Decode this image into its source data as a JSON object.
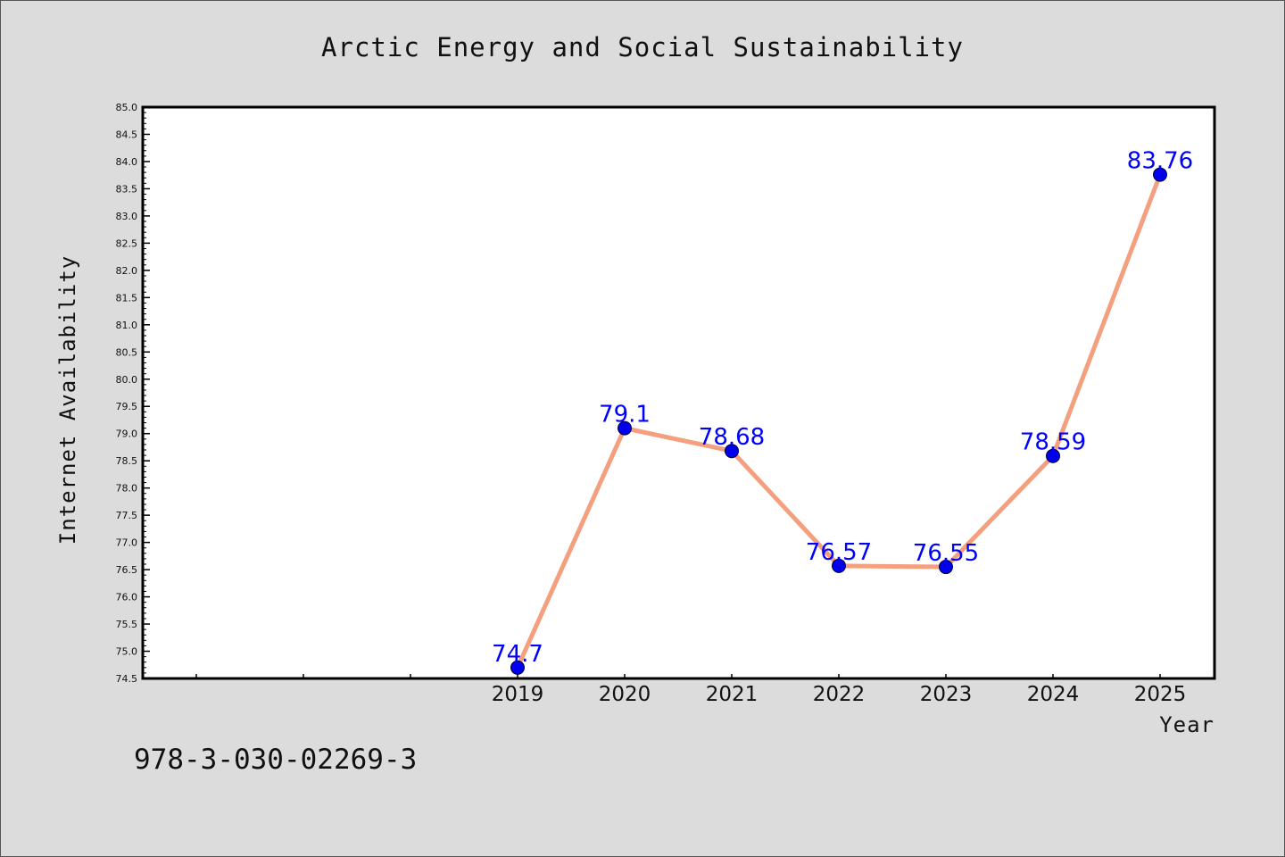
{
  "footer": {
    "isbn": "978-3-030-02269-3"
  },
  "colors": {
    "background": "#dcdcdc",
    "plot_background": "#ffffff",
    "line": "#f4a07f",
    "marker": "#0000ee",
    "data_label": "#0000ff"
  },
  "chart_data": {
    "type": "line",
    "title": "Arctic Energy and Social Sustainability",
    "xlabel": "Year",
    "ylabel": "Internet Availability",
    "x": [
      "2019",
      "2020",
      "2021",
      "2022",
      "2023",
      "2024",
      "2025"
    ],
    "series": [
      {
        "values": [
          74.7,
          79.1,
          78.68,
          76.57,
          76.55,
          78.59,
          83.76
        ],
        "labels": [
          "74.7",
          "79.1",
          "78.68",
          "76.57",
          "76.55",
          "78.59",
          "83.76"
        ]
      }
    ],
    "ylim": [
      74.5,
      85.0
    ],
    "yticks": [
      "74.5",
      "75.0",
      "75.5",
      "76.0",
      "76.5",
      "77.0",
      "77.5",
      "78.0",
      "78.5",
      "79.0",
      "79.5",
      "80.0",
      "80.5",
      "81.0",
      "81.5",
      "82.0",
      "82.5",
      "83.0",
      "83.5",
      "84.0",
      "84.5",
      "85.0"
    ],
    "grid": false,
    "legend": "none",
    "marker": "circle"
  }
}
